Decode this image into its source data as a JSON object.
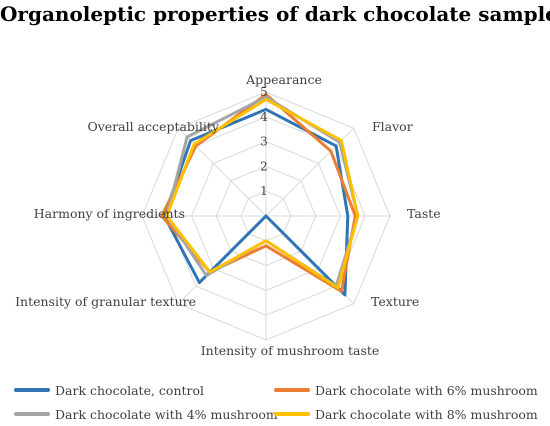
{
  "chart_data": {
    "type": "radar",
    "title": "Organoleptic properties of dark chocolate samples",
    "axes": [
      "Appearance",
      "Flavor",
      "Taste",
      "Texture",
      "Intensity of mushroom taste",
      "Intensity of granular texture",
      "Harmony of ingredients",
      "Overall acceptability"
    ],
    "rlim": [
      0,
      5
    ],
    "ticks": [
      "1",
      "2",
      "3",
      "4",
      "5"
    ],
    "series": [
      {
        "name": "Dark chocolate, control",
        "color": "#2f75b5",
        "values": [
          4.3,
          4.0,
          3.3,
          4.5,
          0.0,
          3.8,
          4.1,
          4.3
        ]
      },
      {
        "name": "Dark chocolate with 6% mushroom",
        "color": "#ed7d31",
        "values": [
          4.9,
          3.7,
          3.6,
          4.3,
          1.2,
          3.2,
          4.2,
          4.0
        ]
      },
      {
        "name": "Dark chocolate with 4% mushroom",
        "color": "#a5a5a5",
        "values": [
          4.8,
          4.2,
          3.7,
          4.0,
          1.0,
          3.4,
          4.0,
          4.5
        ]
      },
      {
        "name": "Dark chocolate with 8% mushroom",
        "color": "#ffc000",
        "values": [
          4.7,
          4.3,
          3.7,
          4.1,
          1.0,
          3.2,
          4.0,
          4.1
        ]
      }
    ],
    "legend": "bottom"
  },
  "legend_items": [
    {
      "label": "Dark chocolate, control",
      "color": "#2f75b5"
    },
    {
      "label": "Dark chocolate with 6% mushroom",
      "color": "#ed7d31"
    },
    {
      "label": "Dark chocolate with 4% mushroom",
      "color": "#a5a5a5"
    },
    {
      "label": "Dark chocolate with 8% mushroom",
      "color": "#ffc000"
    }
  ]
}
